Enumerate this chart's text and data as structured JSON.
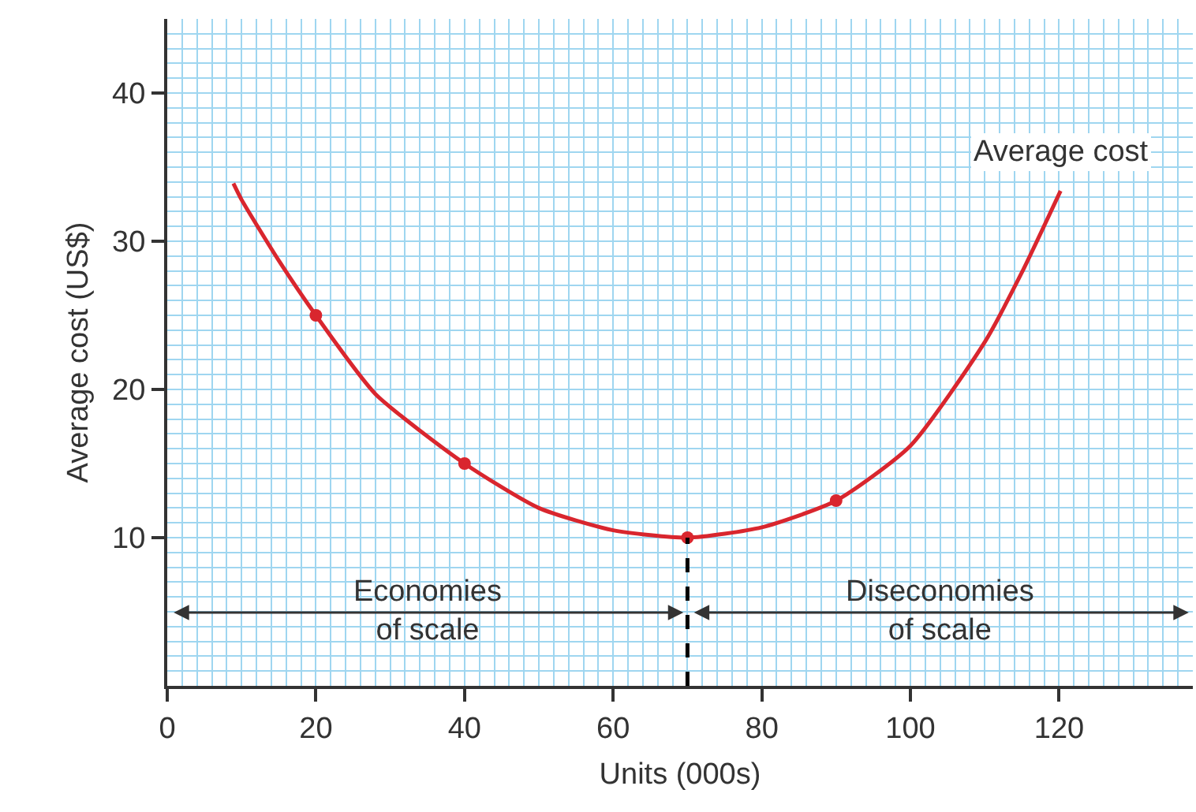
{
  "chart_data": {
    "type": "line",
    "xlabel": "Units (000s)",
    "ylabel": "Average cost (US$)",
    "series": [
      {
        "name": "Average cost",
        "color": "#d9262e",
        "marker": "none",
        "x": [
          8.9,
          10,
          15,
          20,
          28,
          40,
          50,
          60,
          70,
          80,
          90,
          100,
          110,
          115,
          120.2
        ],
        "values": [
          33.9,
          32.8,
          28.7,
          25,
          19.7,
          15,
          12,
          10.5,
          10,
          10.7,
          12.5,
          16.2,
          23.2,
          27.9,
          33.4
        ]
      },
      {
        "type": "scatter",
        "color": "#d9262e",
        "marker": "circle",
        "x": [
          20,
          40,
          70,
          90
        ],
        "values": [
          25,
          15,
          10,
          12.5
        ]
      }
    ],
    "annotations": [
      "Economies\nof scale",
      "Diseconomies\nof scale"
    ],
    "ref_lines": [
      {
        "axis": "x",
        "value": 70,
        "line_style": "dashed",
        "color": "#000000"
      }
    ],
    "xlim": [
      0,
      138
    ],
    "ylim": [
      0,
      45
    ],
    "xticks": [
      0,
      20,
      40,
      60,
      80,
      100,
      120
    ],
    "yticks": [
      10,
      20,
      30,
      40
    ],
    "grid": true,
    "legend": false
  }
}
